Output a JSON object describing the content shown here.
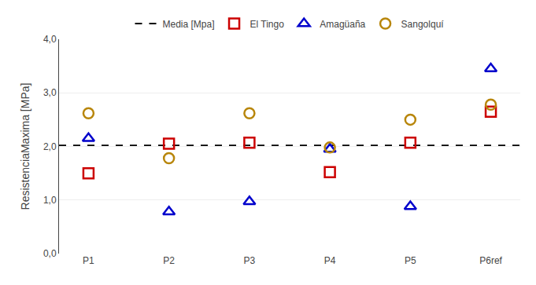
{
  "chart_data": {
    "type": "scatter",
    "categories": [
      "P1",
      "P2",
      "P3",
      "P4",
      "P5",
      "P6ref"
    ],
    "series": [
      {
        "name": "El Tingo",
        "color": "#cc0000",
        "marker": "square-open",
        "values": [
          1.5,
          2.05,
          2.07,
          1.52,
          2.07,
          2.65
        ]
      },
      {
        "name": "Amagüaña",
        "color": "#0000cc",
        "marker": "triangle-up-open",
        "values": [
          2.15,
          0.78,
          0.97,
          1.95,
          0.88,
          3.45
        ]
      },
      {
        "name": "Sangolquí",
        "color": "#b8860b",
        "marker": "circle-open",
        "values": [
          2.62,
          1.78,
          2.62,
          1.98,
          2.5,
          2.78
        ]
      }
    ],
    "reference_line": {
      "name": "Media [Mpa]",
      "value": 2.02,
      "color": "#000000",
      "line_style": "dash"
    },
    "ylabel": "ResistenciaMaxima [MPa]",
    "ylim": [
      0.0,
      4.0
    ],
    "yticks": [
      {
        "value": 0.0,
        "label": "0,0"
      },
      {
        "value": 1.0,
        "label": "1,0"
      },
      {
        "value": 2.0,
        "label": "2,0"
      },
      {
        "value": 3.0,
        "label": "3,0"
      },
      {
        "value": 4.0,
        "label": "4,0"
      }
    ],
    "grid": true,
    "legend": "top"
  }
}
